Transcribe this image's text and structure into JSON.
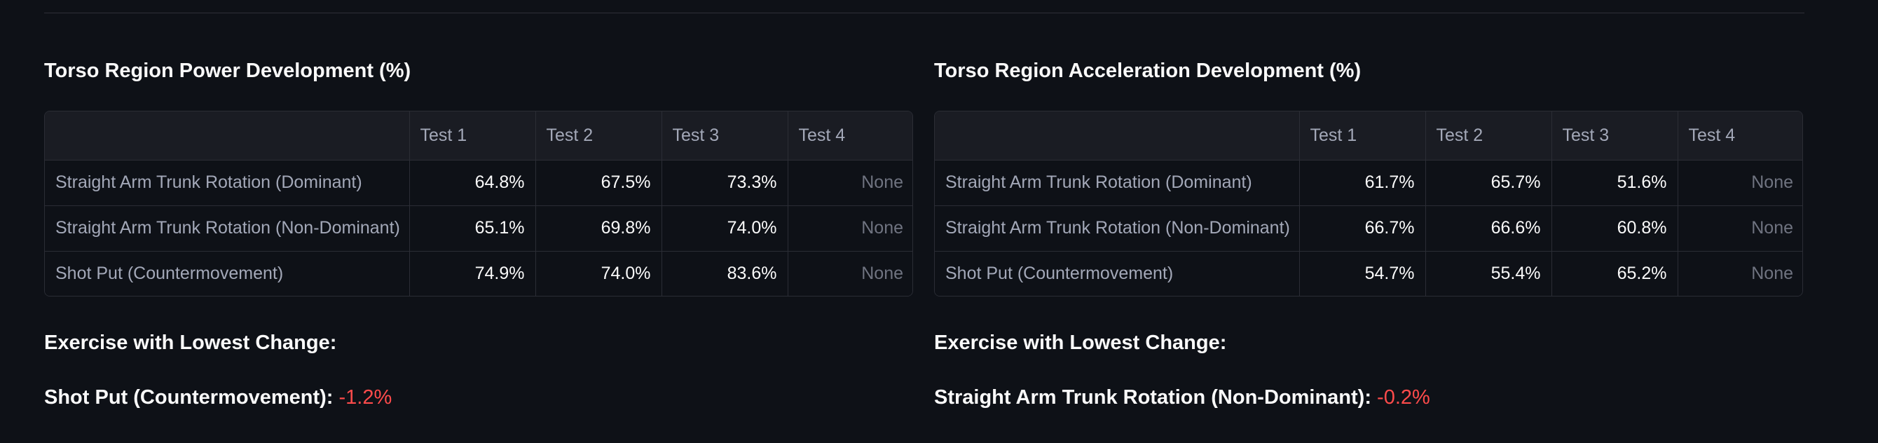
{
  "colors": {
    "background": "#0e1117",
    "negative": "#ff4b4b"
  },
  "panels": [
    {
      "title": "Torso Region Power Development (%)",
      "columns": [
        "",
        "Test 1",
        "Test 2",
        "Test 3",
        "Test 4"
      ],
      "rows": [
        {
          "label": "Straight Arm Trunk Rotation (Dominant)",
          "values": [
            "64.8%",
            "67.5%",
            "73.3%",
            "None"
          ]
        },
        {
          "label": "Straight Arm Trunk Rotation (Non-Dominant)",
          "values": [
            "65.1%",
            "69.8%",
            "74.0%",
            "None"
          ]
        },
        {
          "label": "Shot Put (Countermovement)",
          "values": [
            "74.9%",
            "74.0%",
            "83.6%",
            "None"
          ]
        }
      ],
      "lowest_heading": "Exercise with Lowest Change:",
      "lowest_name": "Shot Put (Countermovement):",
      "lowest_value": "-1.2%"
    },
    {
      "title": "Torso Region Acceleration Development (%)",
      "columns": [
        "",
        "Test 1",
        "Test 2",
        "Test 3",
        "Test 4"
      ],
      "rows": [
        {
          "label": "Straight Arm Trunk Rotation (Dominant)",
          "values": [
            "61.7%",
            "65.7%",
            "51.6%",
            "None"
          ]
        },
        {
          "label": "Straight Arm Trunk Rotation (Non-Dominant)",
          "values": [
            "66.7%",
            "66.6%",
            "60.8%",
            "None"
          ]
        },
        {
          "label": "Shot Put (Countermovement)",
          "values": [
            "54.7%",
            "55.4%",
            "65.2%",
            "None"
          ]
        }
      ],
      "lowest_heading": "Exercise with Lowest Change:",
      "lowest_name": "Straight Arm Trunk Rotation (Non-Dominant):",
      "lowest_value": "-0.2%"
    }
  ]
}
